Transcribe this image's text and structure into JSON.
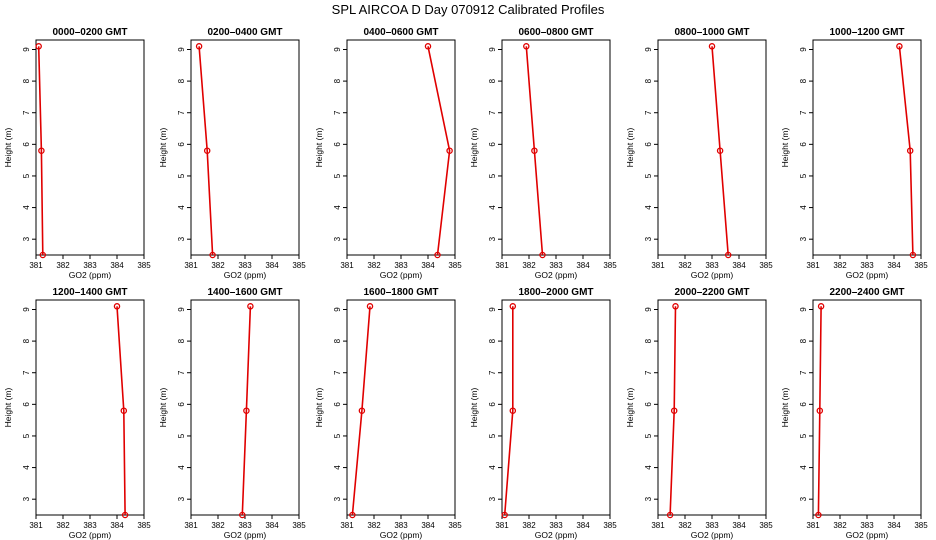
{
  "title": "SPL AIRCOA D  Day 070912  Calibrated Profiles",
  "colors": {
    "series": "#e00000",
    "axes": "#000000",
    "background": "#ffffff"
  },
  "chart_data": [
    {
      "type": "line",
      "title": "0000–0200 GMT",
      "xlabel": "GO2 (ppm)",
      "ylabel": "Height (m)",
      "xlim": [
        381,
        385
      ],
      "ylim": [
        2.5,
        9.3
      ],
      "xticks": [
        "381",
        "382",
        "383",
        "384",
        "385"
      ],
      "yticks": [
        "3",
        "4",
        "5",
        "6",
        "7",
        "8",
        "9"
      ],
      "points": [
        {
          "x": 381.1,
          "y": 9.1
        },
        {
          "x": 381.2,
          "y": 5.8
        },
        {
          "x": 381.25,
          "y": 2.5
        }
      ]
    },
    {
      "type": "line",
      "title": "0200–0400 GMT",
      "xlabel": "GO2 (ppm)",
      "ylabel": "Height (m)",
      "xlim": [
        381,
        385
      ],
      "ylim": [
        2.5,
        9.3
      ],
      "xticks": [
        "381",
        "382",
        "383",
        "384",
        "385"
      ],
      "yticks": [
        "3",
        "4",
        "5",
        "6",
        "7",
        "8",
        "9"
      ],
      "points": [
        {
          "x": 381.3,
          "y": 9.1
        },
        {
          "x": 381.6,
          "y": 5.8
        },
        {
          "x": 381.8,
          "y": 2.5
        }
      ]
    },
    {
      "type": "line",
      "title": "0400–0600 GMT",
      "xlabel": "GO2 (ppm)",
      "ylabel": "Height (m)",
      "xlim": [
        381,
        385
      ],
      "ylim": [
        2.5,
        9.3
      ],
      "xticks": [
        "381",
        "382",
        "383",
        "384",
        "385"
      ],
      "yticks": [
        "3",
        "4",
        "5",
        "6",
        "7",
        "8",
        "9"
      ],
      "points": [
        {
          "x": 384.0,
          "y": 9.1
        },
        {
          "x": 384.8,
          "y": 5.8
        },
        {
          "x": 384.35,
          "y": 2.5
        }
      ]
    },
    {
      "type": "line",
      "title": "0600–0800 GMT",
      "xlabel": "GO2 (ppm)",
      "ylabel": "Height (m)",
      "xlim": [
        381,
        385
      ],
      "ylim": [
        2.5,
        9.3
      ],
      "xticks": [
        "381",
        "382",
        "383",
        "384",
        "385"
      ],
      "yticks": [
        "3",
        "4",
        "5",
        "6",
        "7",
        "8",
        "9"
      ],
      "points": [
        {
          "x": 381.9,
          "y": 9.1
        },
        {
          "x": 382.2,
          "y": 5.8
        },
        {
          "x": 382.5,
          "y": 2.5
        }
      ]
    },
    {
      "type": "line",
      "title": "0800–1000 GMT",
      "xlabel": "GO2 (ppm)",
      "ylabel": "Height (m)",
      "xlim": [
        381,
        385
      ],
      "ylim": [
        2.5,
        9.3
      ],
      "xticks": [
        "381",
        "382",
        "383",
        "384",
        "385"
      ],
      "yticks": [
        "3",
        "4",
        "5",
        "6",
        "7",
        "8",
        "9"
      ],
      "points": [
        {
          "x": 383.0,
          "y": 9.1
        },
        {
          "x": 383.3,
          "y": 5.8
        },
        {
          "x": 383.6,
          "y": 2.5
        }
      ]
    },
    {
      "type": "line",
      "title": "1000–1200 GMT",
      "xlabel": "GO2 (ppm)",
      "ylabel": "Height (m)",
      "xlim": [
        381,
        385
      ],
      "ylim": [
        2.5,
        9.3
      ],
      "xticks": [
        "381",
        "382",
        "383",
        "384",
        "385"
      ],
      "yticks": [
        "3",
        "4",
        "5",
        "6",
        "7",
        "8",
        "9"
      ],
      "points": [
        {
          "x": 384.2,
          "y": 9.1
        },
        {
          "x": 384.6,
          "y": 5.8
        },
        {
          "x": 384.7,
          "y": 2.5
        }
      ]
    },
    {
      "type": "line",
      "title": "1200–1400 GMT",
      "xlabel": "GO2 (ppm)",
      "ylabel": "Height (m)",
      "xlim": [
        381,
        385
      ],
      "ylim": [
        2.5,
        9.3
      ],
      "xticks": [
        "381",
        "382",
        "383",
        "384",
        "385"
      ],
      "yticks": [
        "3",
        "4",
        "5",
        "6",
        "7",
        "8",
        "9"
      ],
      "points": [
        {
          "x": 384.0,
          "y": 9.1
        },
        {
          "x": 384.25,
          "y": 5.8
        },
        {
          "x": 384.3,
          "y": 2.5
        }
      ]
    },
    {
      "type": "line",
      "title": "1400–1600 GMT",
      "xlabel": "GO2 (ppm)",
      "ylabel": "Height (m)",
      "xlim": [
        381,
        385
      ],
      "ylim": [
        2.5,
        9.3
      ],
      "xticks": [
        "381",
        "382",
        "383",
        "384",
        "385"
      ],
      "yticks": [
        "3",
        "4",
        "5",
        "6",
        "7",
        "8",
        "9"
      ],
      "points": [
        {
          "x": 383.2,
          "y": 9.1
        },
        {
          "x": 383.05,
          "y": 5.8
        },
        {
          "x": 382.9,
          "y": 2.5
        }
      ]
    },
    {
      "type": "line",
      "title": "1600–1800 GMT",
      "xlabel": "GO2 (ppm)",
      "ylabel": "Height (m)",
      "xlim": [
        381,
        385
      ],
      "ylim": [
        2.5,
        9.3
      ],
      "xticks": [
        "381",
        "382",
        "383",
        "384",
        "385"
      ],
      "yticks": [
        "3",
        "4",
        "5",
        "6",
        "7",
        "8",
        "9"
      ],
      "points": [
        {
          "x": 381.85,
          "y": 9.1
        },
        {
          "x": 381.55,
          "y": 5.8
        },
        {
          "x": 381.2,
          "y": 2.5
        }
      ]
    },
    {
      "type": "line",
      "title": "1800–2000 GMT",
      "xlabel": "GO2 (ppm)",
      "ylabel": "Height (m)",
      "xlim": [
        381,
        385
      ],
      "ylim": [
        2.5,
        9.3
      ],
      "xticks": [
        "381",
        "382",
        "383",
        "384",
        "385"
      ],
      "yticks": [
        "3",
        "4",
        "5",
        "6",
        "7",
        "8",
        "9"
      ],
      "points": [
        {
          "x": 381.4,
          "y": 9.1
        },
        {
          "x": 381.4,
          "y": 5.8
        },
        {
          "x": 381.1,
          "y": 2.5
        }
      ]
    },
    {
      "type": "line",
      "title": "2000–2200 GMT",
      "xlabel": "GO2 (ppm)",
      "ylabel": "Height (m)",
      "xlim": [
        381,
        385
      ],
      "ylim": [
        2.5,
        9.3
      ],
      "xticks": [
        "381",
        "382",
        "383",
        "384",
        "385"
      ],
      "yticks": [
        "3",
        "4",
        "5",
        "6",
        "7",
        "8",
        "9"
      ],
      "points": [
        {
          "x": 381.65,
          "y": 9.1
        },
        {
          "x": 381.6,
          "y": 5.8
        },
        {
          "x": 381.45,
          "y": 2.5
        }
      ]
    },
    {
      "type": "line",
      "title": "2200–2400 GMT",
      "xlabel": "GO2 (ppm)",
      "ylabel": "Height (m)",
      "xlim": [
        381,
        385
      ],
      "ylim": [
        2.5,
        9.3
      ],
      "xticks": [
        "381",
        "382",
        "383",
        "384",
        "385"
      ],
      "yticks": [
        "3",
        "4",
        "5",
        "6",
        "7",
        "8",
        "9"
      ],
      "points": [
        {
          "x": 381.3,
          "y": 9.1
        },
        {
          "x": 381.25,
          "y": 5.8
        },
        {
          "x": 381.2,
          "y": 2.5
        }
      ]
    }
  ]
}
